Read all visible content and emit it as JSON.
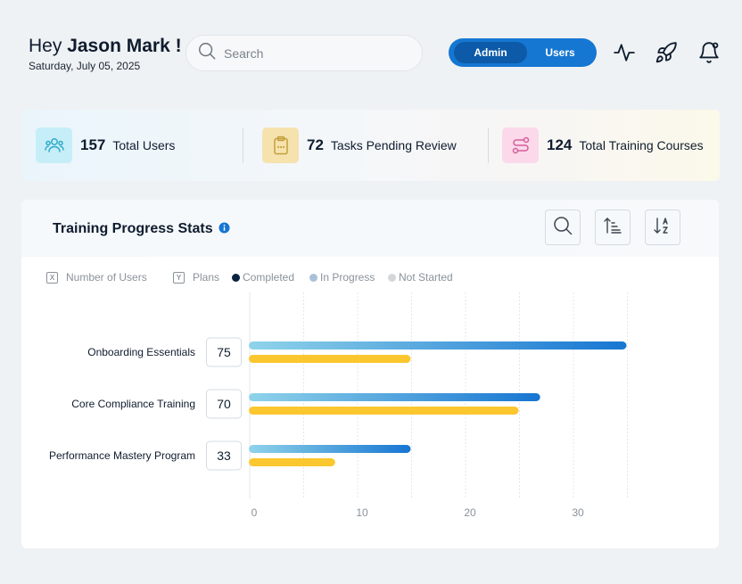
{
  "header": {
    "greeting": "Hey",
    "user_name": "Jason Mark !",
    "date": "Saturday, July 05, 2025",
    "search_placeholder": "Search",
    "role_toggle": {
      "active": "Admin",
      "inactive": "Users"
    },
    "icons": [
      "activity-icon",
      "rocket-icon",
      "bell-icon"
    ]
  },
  "stats": [
    {
      "value": "157",
      "label": "Total Users",
      "icon": "users-icon",
      "bg": "#c6eef8",
      "color": "#2eaac9"
    },
    {
      "value": "72",
      "label": "Tasks Pending Review",
      "icon": "clipboard-icon",
      "bg": "#f6e2ad",
      "color": "#c39f3b"
    },
    {
      "value": "124",
      "label": "Total Training Courses",
      "icon": "route-icon",
      "bg": "#fbd9ea",
      "color": "#d65d9b"
    }
  ],
  "card": {
    "title": "Training Progress Stats",
    "tools": [
      "search-icon",
      "sort-ascending-icon",
      "sort-alpha-icon"
    ]
  },
  "legend": {
    "x_axis_badge": "X",
    "x_axis_label": "Number of Users",
    "y_axis_badge": "Y",
    "y_axis_label": "Plans",
    "series": [
      {
        "name": "Completed",
        "color": "#0b2241"
      },
      {
        "name": "In Progress",
        "color": "#a9c1d8"
      },
      {
        "name": "Not Started",
        "color": "#d4d7da"
      }
    ]
  },
  "chart_data": {
    "type": "bar",
    "orientation": "horizontal",
    "categories": [
      "Onboarding Essentials",
      "Core Compliance Training",
      "Performance Mastery Program"
    ],
    "total_users": [
      75,
      70,
      33
    ],
    "series": [
      {
        "values": [
          35,
          27,
          15
        ],
        "color_start": "#8fd3ea",
        "color_end": "#1776d2"
      },
      {
        "values": [
          15,
          25,
          8
        ],
        "color": "#fbc72f"
      }
    ],
    "xlim": [
      0,
      35
    ],
    "x_ticks": [
      0,
      10,
      20,
      30
    ],
    "grid": true
  }
}
